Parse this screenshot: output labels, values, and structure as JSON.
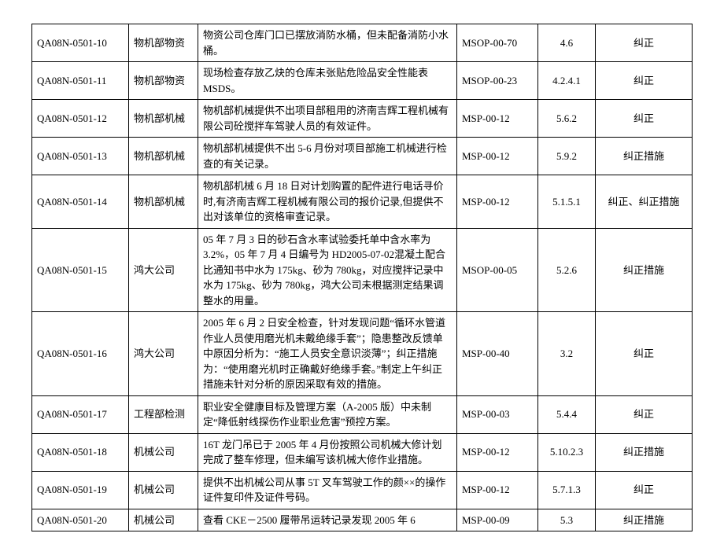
{
  "rows": [
    {
      "id": "QA08N-0501-10",
      "dept": "物机部物资",
      "desc": "物资公司仓库门口已摆放消防水桶，但未配备消防小水桶。",
      "code": "MSOP-00-70",
      "num": "4.6",
      "action": "纠正"
    },
    {
      "id": "QA08N-0501-11",
      "dept": "物机部物资",
      "desc": "现场检查存放乙炔的仓库未张贴危险品安全性能表 MSDS。",
      "code": "MSOP-00-23",
      "num": "4.2.4.1",
      "action": "纠正"
    },
    {
      "id": "QA08N-0501-12",
      "dept": "物机部机械",
      "desc": "物机部机械提供不出项目部租用的济南吉辉工程机械有限公司砼搅拌车驾驶人员的有效证件。",
      "code": "MSP-00-12",
      "num": "5.6.2",
      "action": "纠正"
    },
    {
      "id": "QA08N-0501-13",
      "dept": "物机部机械",
      "desc": "物机部机械提供不出 5-6 月份对项目部施工机械进行检查的有关记录。",
      "code": "MSP-00-12",
      "num": "5.9.2",
      "action": "纠正措施"
    },
    {
      "id": "QA08N-0501-14",
      "dept": "物机部机械",
      "desc": "物机部机械 6 月 18 日对计划购置的配件进行电话寻价时,有济南吉辉工程机械有限公司的报价记录,但提供不出对该单位的资格审查记录。",
      "code": "MSP-00-12",
      "num": "5.1.5.1",
      "action": "纠正、纠正措施"
    },
    {
      "id": "QA08N-0501-15",
      "dept": "鸿大公司",
      "desc": "05 年 7 月 3 日的砂石含水率试验委托单中含水率为 3.2%，05 年 7 月 4 日编号为 HD2005-07-02混凝土配合比通知书中水为 175kg、砂为 780kg，对应搅拌记录中水为 175kg、砂为 780kg，鸿大公司未根据测定结果调整水的用量。",
      "code": "MSOP-00-05",
      "num": "5.2.6",
      "action": "纠正措施"
    },
    {
      "id": "QA08N-0501-16",
      "dept": "鸿大公司",
      "desc": "2005 年 6 月 2 日安全检查，针对发现问题“循环水管道作业人员使用磨光机未戴绝缘手套”；隐患整改反馈单中原因分析为：“施工人员安全意识淡薄”；纠正措施为：“使用磨光机时正确戴好绝缘手套。”制定上午纠正措施未针对分析的原因采取有效的措施。",
      "code": "MSP-00-40",
      "num": "3.2",
      "action": "纠正"
    },
    {
      "id": "QA08N-0501-17",
      "dept": "工程部检测",
      "desc": "职业安全健康目标及管理方案（A-2005 版）中未制定“降低射线探伤作业职业危害”预控方案。",
      "code": "MSP-00-03",
      "num": "5.4.4",
      "action": "纠正"
    },
    {
      "id": "QA08N-0501-18",
      "dept": "机械公司",
      "desc": "16T 龙门吊已于 2005 年 4 月份按照公司机械大修计划完成了整车修理，但未编写该机械大修作业措施。",
      "code": "MSP-00-12",
      "num": "5.10.2.3",
      "action": "纠正措施"
    },
    {
      "id": "QA08N-0501-19",
      "dept": "机械公司",
      "desc": "提供不出机械公司从事 5T 叉车驾驶工作的颜××的操作证件复印件及证件号码。",
      "code": "MSP-00-12",
      "num": "5.7.1.3",
      "action": "纠正"
    },
    {
      "id": "QA08N-0501-20",
      "dept": "机械公司",
      "desc": "查看 CKE－2500 履带吊运转记录发现 2005 年 6",
      "code": "MSP-00-09",
      "num": "5.3",
      "action": "纠正措施"
    }
  ]
}
